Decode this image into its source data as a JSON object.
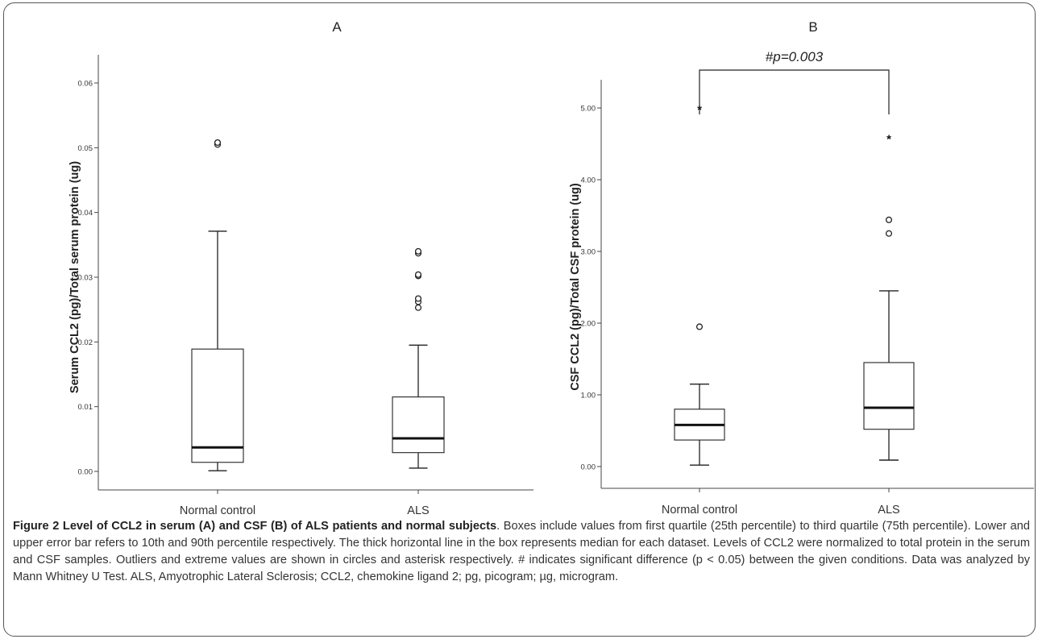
{
  "chart_data": [
    {
      "type": "box",
      "panel_label": "A",
      "ylabel": "Serum CCL2 (pg)/Total serum protein (ug)",
      "ylim": [
        0,
        0.06
      ],
      "yticks": [
        0.0,
        0.01,
        0.02,
        0.03,
        0.04,
        0.05,
        0.06
      ],
      "ytick_labels": [
        "0.00",
        "0.01",
        "0.02",
        "0.03",
        "0.04",
        "0.05",
        "0.06"
      ],
      "categories": [
        "Normal control",
        "ALS"
      ],
      "boxes": [
        {
          "category": "Normal control",
          "whisker_low": 0.0001,
          "q1": 0.0014,
          "median": 0.0037,
          "q3": 0.0189,
          "whisker_high": 0.0371,
          "outliers": [
            0.0505,
            0.0508
          ],
          "extremes": []
        },
        {
          "category": "ALS",
          "whisker_low": 0.0005,
          "q1": 0.0029,
          "median": 0.0051,
          "q3": 0.0115,
          "whisker_high": 0.0195,
          "outliers": [
            0.0253,
            0.0262,
            0.0267,
            0.0302,
            0.0304,
            0.0337,
            0.034
          ],
          "extremes": []
        }
      ]
    },
    {
      "type": "box",
      "panel_label": "B",
      "ylabel": "CSF CCL2 (pg)/Total CSF protein (ug)",
      "ylim": [
        0,
        5.0
      ],
      "yticks": [
        0,
        1,
        2,
        3,
        4,
        5
      ],
      "ytick_labels": [
        "0.00",
        "1.00",
        "2.00",
        "3.00",
        "4.00",
        "5.00"
      ],
      "categories": [
        "Normal control",
        "ALS"
      ],
      "annotation": "#p=0.003",
      "boxes": [
        {
          "category": "Normal control",
          "whisker_low": 0.02,
          "q1": 0.37,
          "median": 0.58,
          "q3": 0.8,
          "whisker_high": 1.15,
          "outliers": [
            1.95
          ],
          "extremes": [
            4.98
          ]
        },
        {
          "category": "ALS",
          "whisker_low": 0.09,
          "q1": 0.52,
          "median": 0.82,
          "q3": 1.45,
          "whisker_high": 2.45,
          "outliers": [
            3.25,
            3.44
          ],
          "extremes": [
            4.57
          ]
        }
      ]
    }
  ],
  "caption": {
    "title": "Figure 2 Level of CCL2 in serum (A) and CSF (B) of ALS patients and normal subjects",
    "body": ". Boxes include values from first quartile (25th percentile) to third quartile (75th percentile). Lower and upper error bar refers to 10th and 90th percentile respectively. The thick horizontal line in the box represents median for each dataset. Levels of CCL2 were normalized to total protein in the serum and CSF samples. Outliers and extreme values are shown in circles and asterisk respectively. # indicates significant difference (p < 0.05) between the given conditions. Data was analyzed by Mann Whitney U Test. ALS, Amyotrophic Lateral Sclerosis; CCL2, chemokine ligand 2; pg, picogram; µg, microgram."
  }
}
